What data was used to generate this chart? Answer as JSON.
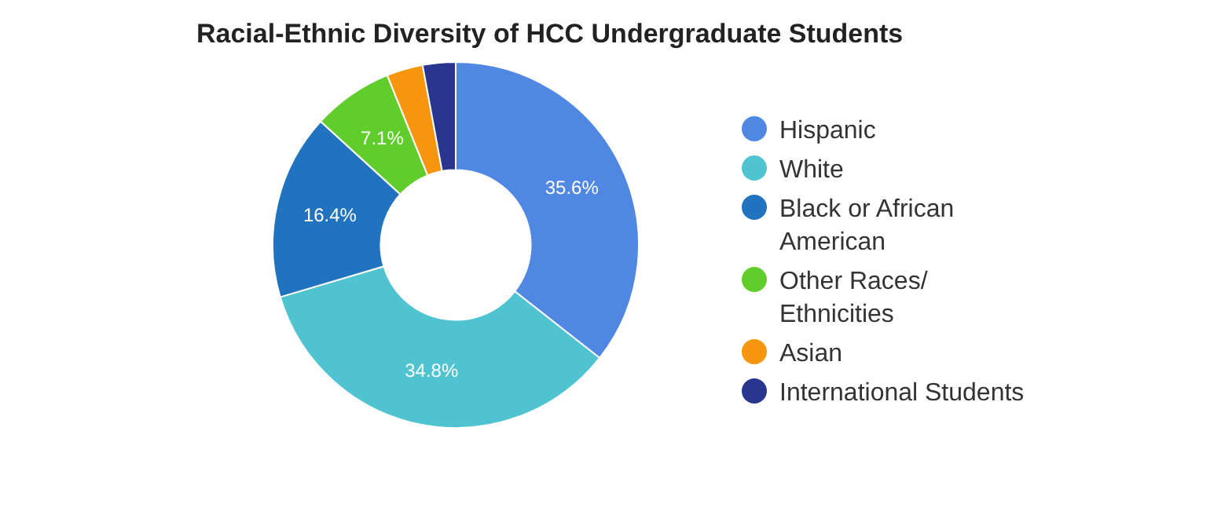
{
  "chart_data": {
    "type": "donut",
    "title": "Racial-Ethnic Diversity of HCC Undergraduate Students",
    "categories": [
      "Hispanic",
      "White",
      "Black or African American",
      "Other Races/ Ethnicities",
      "Asian",
      "International Students"
    ],
    "values": [
      35.6,
      34.8,
      16.4,
      7.1,
      3.2,
      2.9
    ],
    "value_labels": [
      "35.6%",
      "34.8%",
      "16.4%",
      "7.1%",
      null,
      null
    ],
    "colors": [
      "#5087e3",
      "#4fc3d0",
      "#2273bf",
      "#61cd2c",
      "#f7960e",
      "#28368f"
    ],
    "legend": "right"
  }
}
